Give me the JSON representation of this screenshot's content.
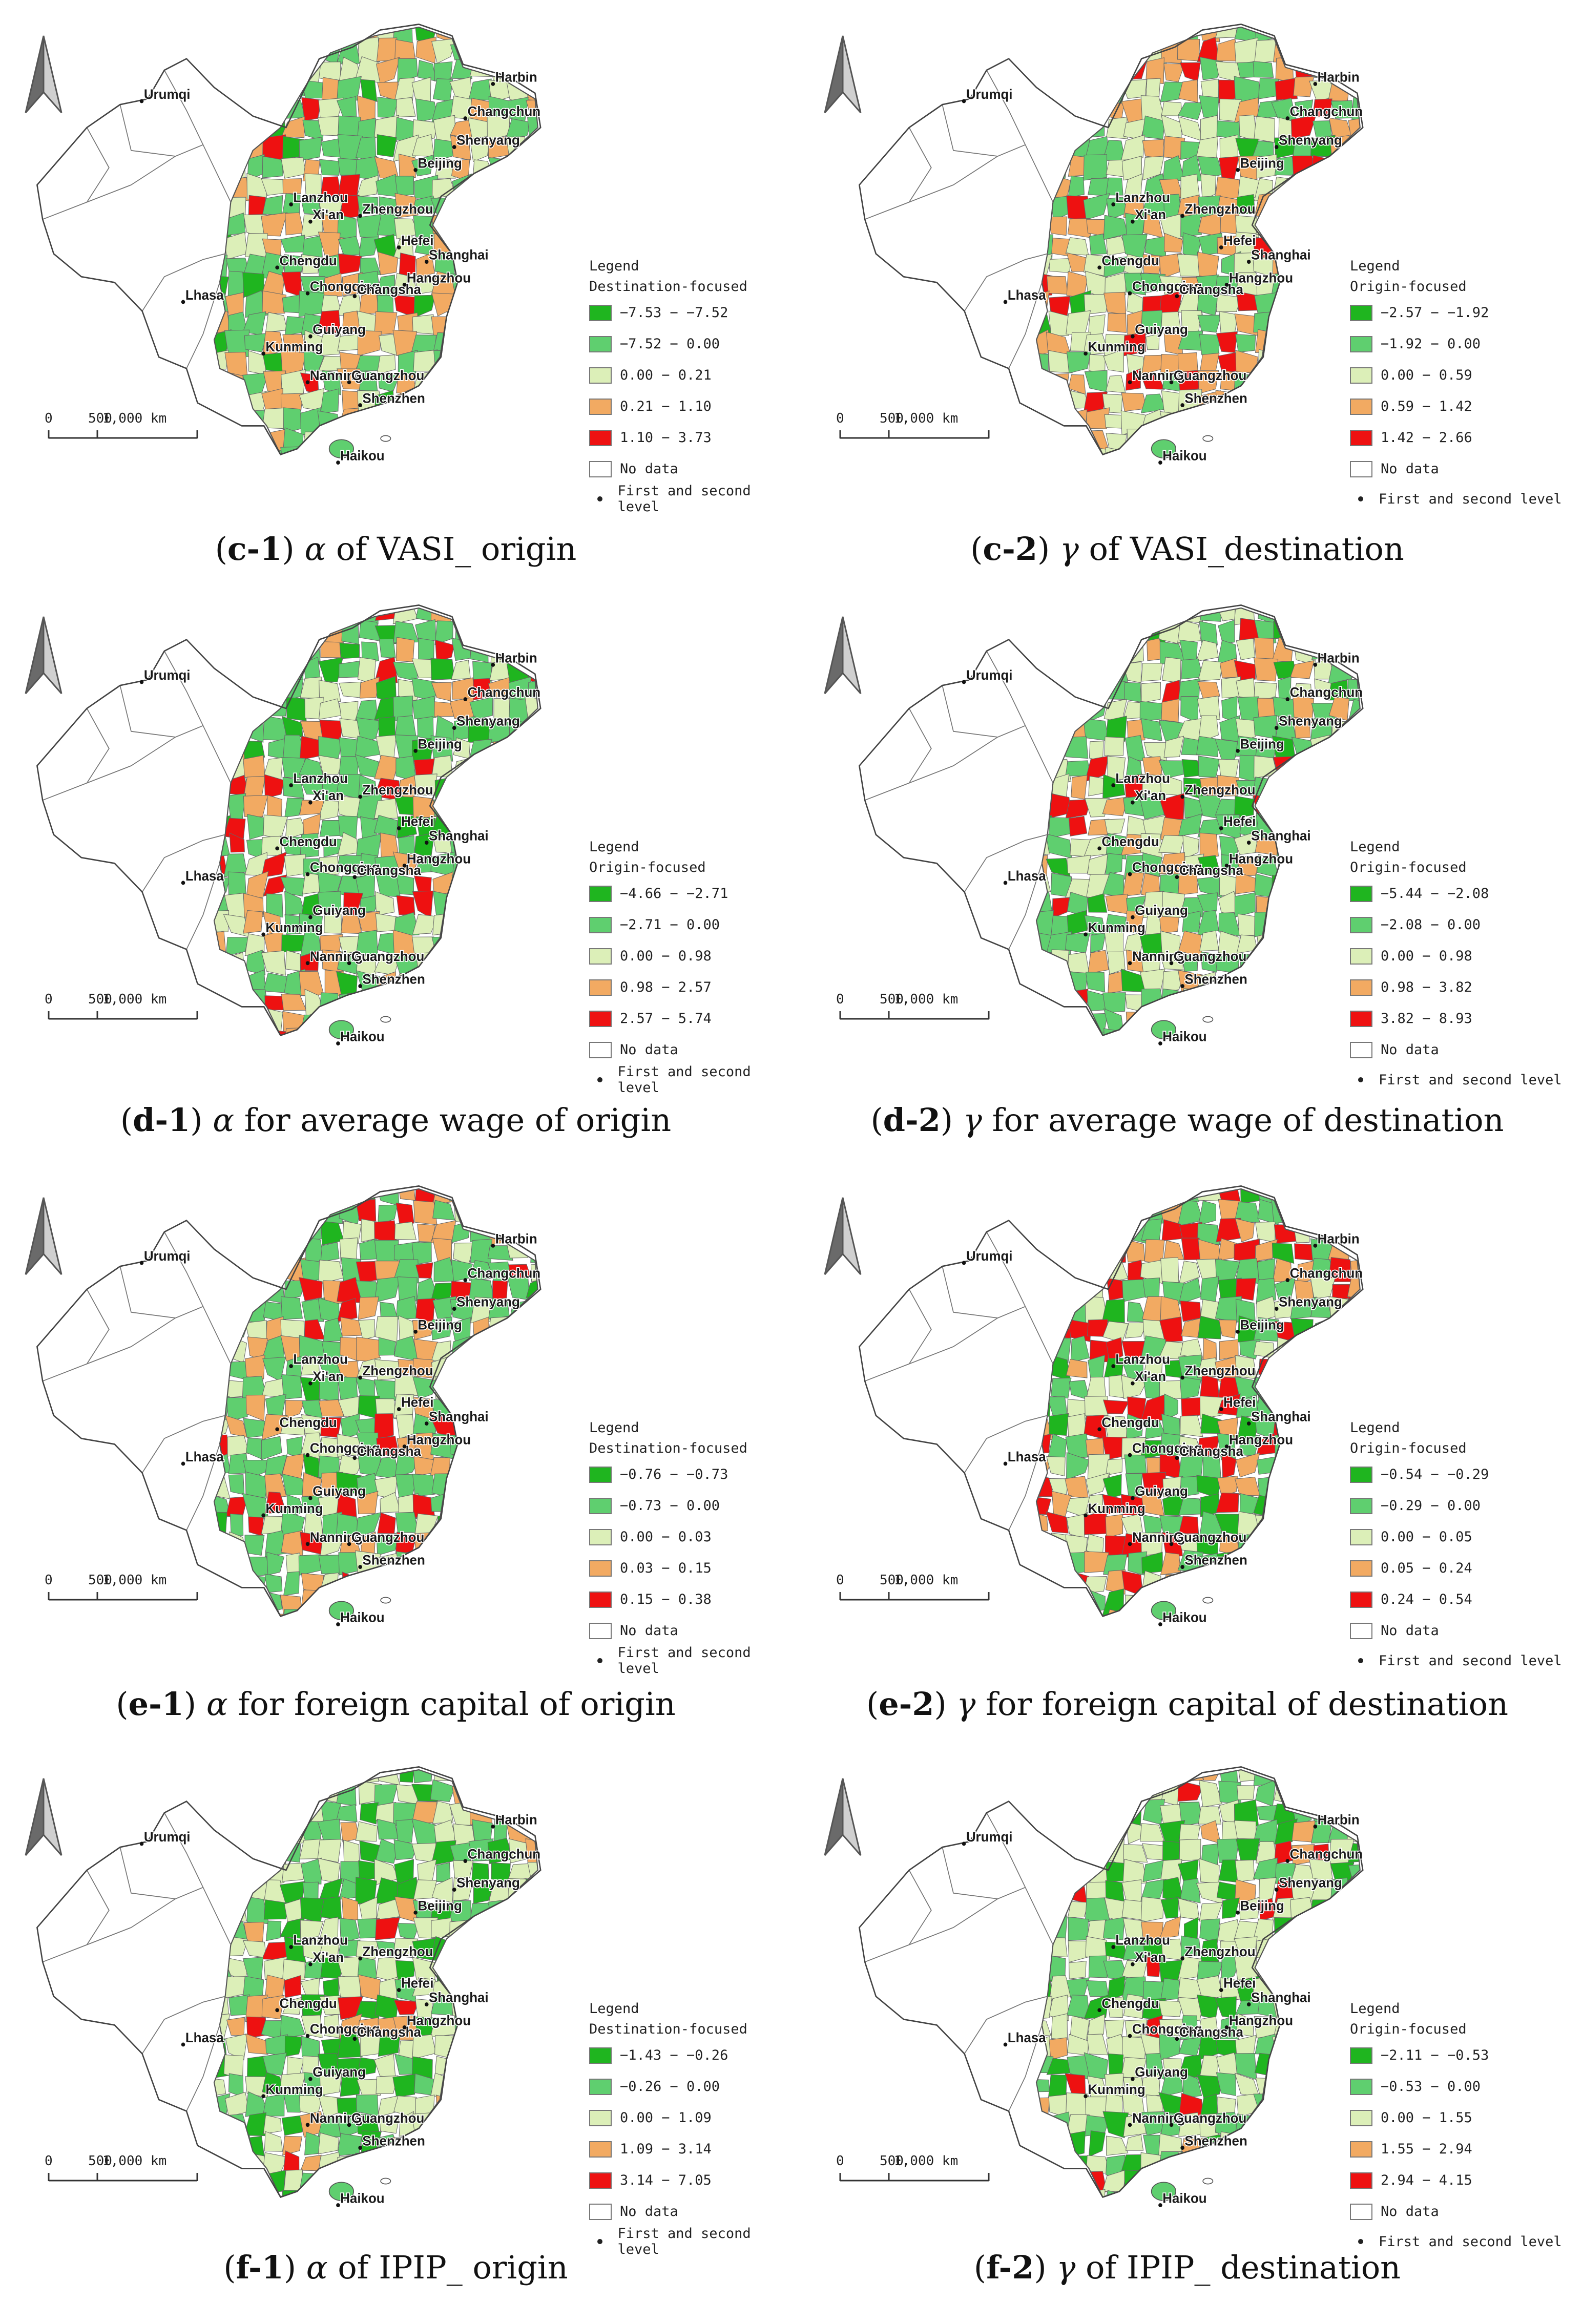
{
  "common": {
    "scale_labels": [
      "0",
      "500",
      "1,000 km"
    ],
    "legend_title": "Legend",
    "no_data_label": "No data",
    "level_label": "First and second level",
    "class_colors": [
      "#1fb51f",
      "#5fcf6f",
      "#dcefb8",
      "#f2aa62",
      "#ee1111"
    ],
    "no_data_color": "#ffffff",
    "cities": [
      "Urumqi",
      "Harbin",
      "Changchun",
      "Shenyang",
      "Beijing",
      "Lanzhou",
      "Xi'an",
      "Zhengzhou",
      "Hefei",
      "Shanghai",
      "Chengdu",
      "Chongqing",
      "Changsha",
      "Hangzhou",
      "Lhasa",
      "Guiyang",
      "Kunming",
      "Nanning",
      "Guangzhou",
      "Shenzhen",
      "Haikou"
    ]
  },
  "panels": [
    {
      "id": "c-1",
      "symbol": "α",
      "caption": " of VASI_ origin",
      "legend_subtitle": "Destination-focused",
      "classes": [
        "−7.53 − −7.52",
        "−7.52 − 0.00",
        "0.00 − 0.21",
        "0.21 − 1.10",
        "1.10 − 3.73"
      ]
    },
    {
      "id": "c-2",
      "symbol": "γ",
      "caption": " of VASI_destination",
      "legend_subtitle": "Origin-focused",
      "classes": [
        "−2.57 − −1.92",
        "−1.92 − 0.00",
        "0.00 − 0.59",
        "0.59 − 1.42",
        "1.42 − 2.66"
      ]
    },
    {
      "id": "d-1",
      "symbol": "α",
      "caption": " for average wage of origin",
      "legend_subtitle": "Origin-focused",
      "classes": [
        "−4.66 − −2.71",
        "−2.71 − 0.00",
        "0.00 − 0.98",
        "0.98 − 2.57",
        "2.57 − 5.74"
      ]
    },
    {
      "id": "d-2",
      "symbol": "γ",
      "caption": " for average wage of destination",
      "legend_subtitle": "Origin-focused",
      "classes": [
        "−5.44 − −2.08",
        "−2.08 − 0.00",
        "0.00 − 0.98",
        "0.98 − 3.82",
        "3.82 − 8.93"
      ]
    },
    {
      "id": "e-1",
      "symbol": "α",
      "caption": " for foreign capital of origin",
      "legend_subtitle": "Destination-focused",
      "classes": [
        "−0.76 − −0.73",
        "−0.73 − 0.00",
        "0.00 − 0.03",
        "0.03 − 0.15",
        "0.15 − 0.38"
      ]
    },
    {
      "id": "e-2",
      "symbol": "γ",
      "caption": " for foreign capital of destination",
      "legend_subtitle": "Origin-focused",
      "classes": [
        "−0.54 − −0.29",
        "−0.29 − 0.00",
        "0.00 − 0.05",
        "0.05 − 0.24",
        "0.24 − 0.54"
      ]
    },
    {
      "id": "f-1",
      "symbol": "α",
      "caption": " of IPIP_ origin",
      "legend_subtitle": "Destination-focused",
      "classes": [
        "−1.43 − −0.26",
        "−0.26 − 0.00",
        "0.00 − 1.09",
        "1.09 − 3.14",
        "3.14 − 7.05"
      ]
    },
    {
      "id": "f-2",
      "symbol": "γ",
      "caption": " of IPIP_ destination",
      "legend_subtitle": "Origin-focused",
      "classes": [
        "−2.11 − −0.53",
        "−0.53 − 0.00",
        "0.00 − 1.55",
        "1.55 − 2.94",
        "2.94 − 4.15"
      ]
    }
  ]
}
